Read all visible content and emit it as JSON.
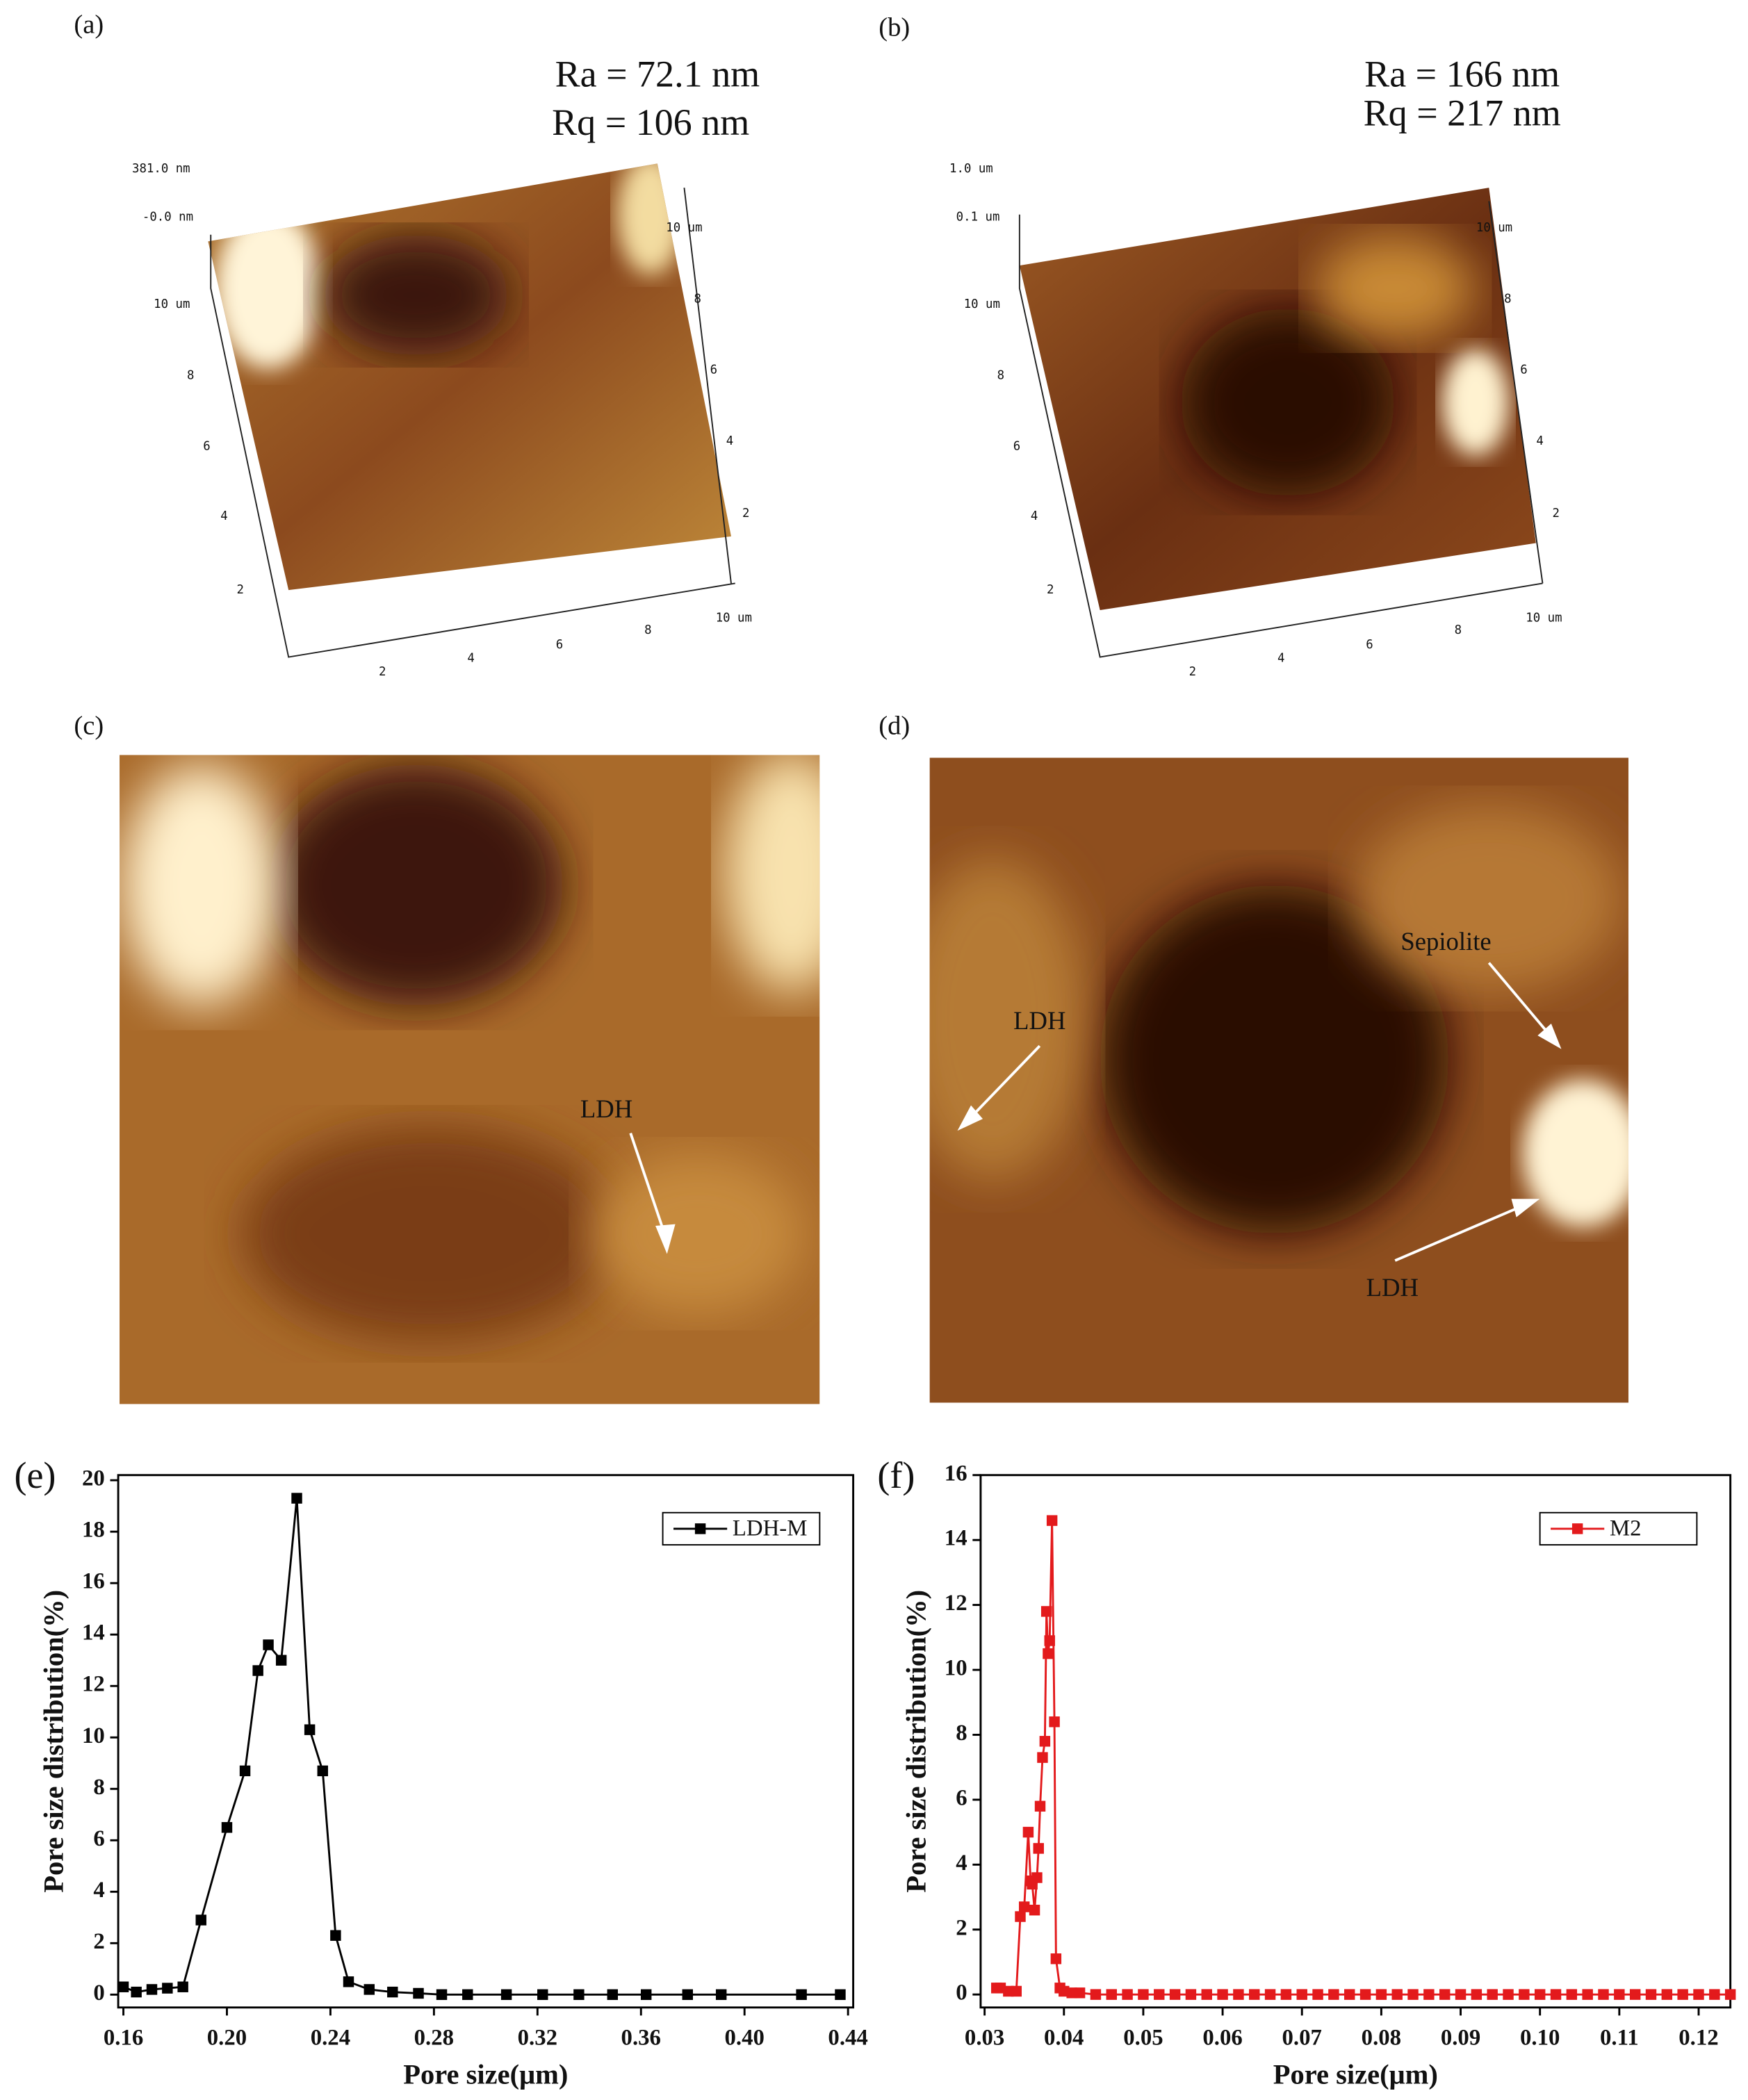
{
  "images": [
    {
      "label": "(a)",
      "annotations": [
        "Ra = 72.1 nm",
        "Rq = 106 nm"
      ],
      "axis_labels": [
        "381.0 nm",
        "-0.0 nm",
        "10 um",
        "8",
        "6",
        "4",
        "2",
        "2",
        "4",
        "6",
        "8",
        "10 um",
        "10 um",
        "8",
        "6",
        "4",
        "2"
      ]
    },
    {
      "label": "(b)",
      "annotations": [
        "Ra = 166 nm",
        "Rq = 217 nm"
      ],
      "axis_labels": [
        "1.0 um",
        "0.1 um",
        "10 um",
        "8",
        "6",
        "4",
        "2",
        "2",
        "4",
        "6",
        "8",
        "10 um",
        "10 um",
        "8",
        "6",
        "4",
        "2"
      ]
    },
    {
      "label": "(c)",
      "annotations": [
        "LDH"
      ]
    },
    {
      "label": "(d)",
      "annotations": [
        "Sepiolite",
        "LDH",
        "LDH"
      ]
    }
  ],
  "chart_data": [
    {
      "type": "line",
      "panel": "(e)",
      "xlabel": "Pore size(μm)",
      "ylabel": "Pore size distribution(%)",
      "x": [
        0.16,
        0.165,
        0.171,
        0.177,
        0.183,
        0.19,
        0.2,
        0.207,
        0.212,
        0.216,
        0.221,
        0.227,
        0.232,
        0.237,
        0.242,
        0.247,
        0.255,
        0.264,
        0.274,
        0.283,
        0.293,
        0.308,
        0.322,
        0.336,
        0.349,
        0.362,
        0.378,
        0.391,
        0.422,
        0.437
      ],
      "series": [
        {
          "name": "LDH-M",
          "color": "#000000",
          "values": [
            0.3,
            0.1,
            0.2,
            0.25,
            0.3,
            2.9,
            6.5,
            8.7,
            12.6,
            13.6,
            13.0,
            19.3,
            10.3,
            8.7,
            2.3,
            0.5,
            0.2,
            0.1,
            0.05,
            0,
            0,
            0,
            0,
            0,
            0,
            0,
            0,
            0,
            0,
            0
          ]
        }
      ],
      "xlim": [
        0.158,
        0.442
      ],
      "ylim": [
        -0.5,
        20.2
      ],
      "xticks": [
        0.16,
        {
          "value": 0.2,
          "label": "0.20"
        },
        0.24,
        0.28,
        0.32,
        0.36,
        {
          "value": 0.4,
          "label": "0.40"
        },
        0.44
      ],
      "yticks": [
        0,
        2,
        4,
        6,
        8,
        10,
        12,
        14,
        16,
        18,
        20
      ],
      "legend": "upper right"
    },
    {
      "type": "line",
      "panel": "(f)",
      "xlabel": "Pore size(μm)",
      "ylabel": "Pore size distribution(%)",
      "x": [
        0.0315,
        0.032,
        0.033,
        0.034,
        0.0345,
        0.035,
        0.0355,
        0.0358,
        0.036,
        0.0363,
        0.0366,
        0.0368,
        0.037,
        0.0373,
        0.0376,
        0.0378,
        0.038,
        0.0382,
        0.0385,
        0.0388,
        0.039,
        0.0395,
        0.04,
        0.041,
        0.042,
        0.044,
        0.046,
        0.048,
        0.05,
        0.052,
        0.054,
        0.056,
        0.058,
        0.06,
        0.062,
        0.064,
        0.066,
        0.068,
        0.07,
        0.072,
        0.074,
        0.076,
        0.078,
        0.08,
        0.082,
        0.084,
        0.086,
        0.088,
        0.09,
        0.092,
        0.094,
        0.096,
        0.098,
        0.1,
        0.102,
        0.104,
        0.106,
        0.108,
        0.11,
        0.112,
        0.114,
        0.116,
        0.118,
        0.12,
        0.122,
        0.124
      ],
      "series": [
        {
          "name": "M2",
          "color": "#e31a1c",
          "values": [
            0.2,
            0.2,
            0.1,
            0.1,
            2.4,
            2.7,
            5.0,
            3.5,
            3.4,
            2.6,
            3.6,
            4.5,
            5.8,
            7.3,
            7.8,
            11.8,
            10.5,
            10.9,
            14.6,
            8.4,
            1.1,
            0.2,
            0.1,
            0.05,
            0.05,
            0,
            0,
            0,
            0,
            0,
            0,
            0,
            0,
            0,
            0,
            0,
            0,
            0,
            0,
            0,
            0,
            0,
            0,
            0,
            0,
            0,
            0,
            0,
            0,
            0,
            0,
            0,
            0,
            0,
            0,
            0,
            0,
            0,
            0,
            0,
            0,
            0,
            0,
            0,
            0,
            0
          ]
        }
      ],
      "xlim": [
        0.0295,
        0.124
      ],
      "ylim": [
        -0.4,
        16
      ],
      "xticks": [
        0.03,
        0.04,
        0.05,
        0.06,
        0.07,
        0.08,
        0.09,
        {
          "value": 0.1,
          "label": "0.10"
        },
        0.11,
        0.12
      ],
      "yticks": [
        0,
        2,
        4,
        6,
        8,
        10,
        12,
        14,
        16
      ],
      "legend": "upper right"
    }
  ]
}
